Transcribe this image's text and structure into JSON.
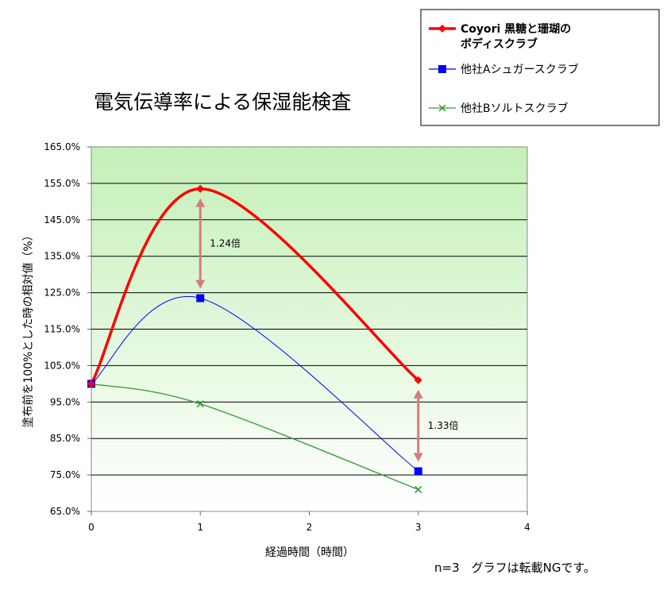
{
  "chart_data": {
    "type": "line",
    "title": "電気伝導率による保湿能検査",
    "xlabel": "経過時間（時間）",
    "ylabel": "塗布前を100%とした時の相対値（%）",
    "xlim": [
      0,
      4
    ],
    "ylim": [
      65,
      165
    ],
    "x_ticks": [
      "0",
      "1",
      "2",
      "3",
      "4"
    ],
    "y_ticks": [
      "165.0%",
      "155.0%",
      "145.0%",
      "135.0%",
      "125.0%",
      "115.0%",
      "105.0%",
      "95.0%",
      "85.0%",
      "75.0%",
      "65.0%"
    ],
    "grid": true,
    "legend_position": "top-right",
    "series": [
      {
        "name": "Coyori 黒糖と珊瑚のボディスクラブ",
        "name_lines": [
          "Coyori 黒糖と珊瑚の",
          "ボディスクラブ"
        ],
        "x": [
          0,
          1,
          3
        ],
        "values": [
          100,
          153.5,
          101
        ],
        "color": "#ff0000",
        "marker": "diamond"
      },
      {
        "name": "他社Aシュガースクラブ",
        "name_lines": [
          "他社Aシュガースクラブ"
        ],
        "x": [
          0,
          1,
          3
        ],
        "values": [
          100,
          123.5,
          76
        ],
        "color": "#0000ff",
        "marker": "square"
      },
      {
        "name": "他社Bソルトスクラブ",
        "name_lines": [
          "他社Bソルトスクラブ"
        ],
        "x": [
          0,
          1,
          3
        ],
        "values": [
          100,
          94.5,
          71
        ],
        "color": "#339933",
        "marker": "x"
      }
    ],
    "annotations": [
      {
        "text": "1.24倍",
        "x": 1,
        "from": 123.5,
        "to": 153.5
      },
      {
        "text": "1.33倍",
        "x": 3,
        "from": 76,
        "to": 101
      }
    ],
    "footnote": "n=3　グラフは転載NGです。"
  }
}
